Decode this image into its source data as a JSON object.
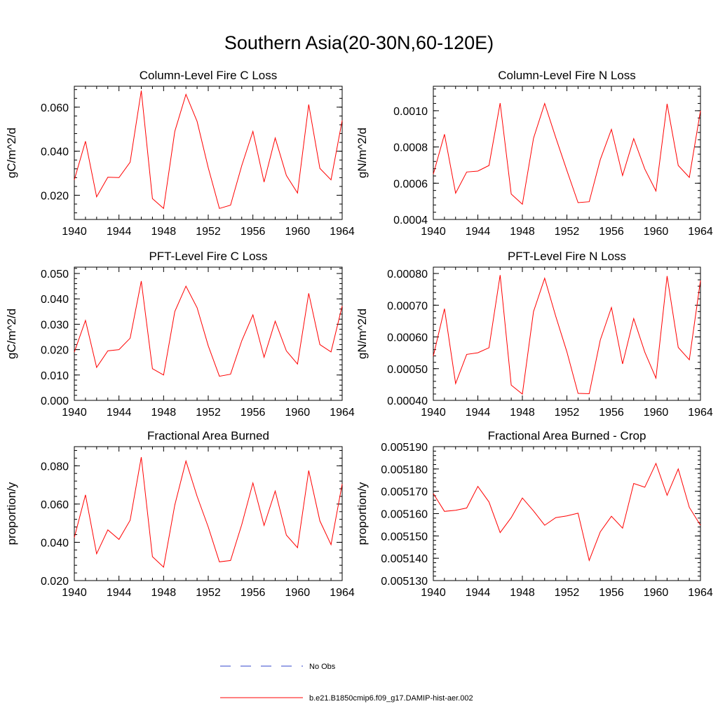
{
  "title": "Southern Asia(20-30N,60-120E)",
  "legend": [
    {
      "label": "No Obs",
      "color": "#3344cc",
      "dash": "dashed"
    },
    {
      "label": "b.e21.B1850cmip6.f09_g17.DAMIP-hist-aer.002",
      "color": "#ff0000",
      "dash": "solid"
    }
  ],
  "chart_data": [
    {
      "type": "line",
      "title": "Column-Level Fire C Loss",
      "xlabel": "",
      "ylabel": "gC/m^2/d",
      "xlim": [
        1940,
        1964
      ],
      "ylim": [
        0.009,
        0.0695
      ],
      "xticks": [
        1940,
        1944,
        1948,
        1952,
        1956,
        1960,
        1964
      ],
      "yticks": [
        0.02,
        0.04,
        0.06
      ],
      "ytick_labels": [
        "0.020",
        "0.040",
        "0.060"
      ],
      "x": [
        1940,
        1941,
        1942,
        1943,
        1944,
        1945,
        1946,
        1947,
        1948,
        1949,
        1950,
        1951,
        1952,
        1953,
        1954,
        1955,
        1956,
        1957,
        1958,
        1959,
        1960,
        1961,
        1962,
        1963,
        1964
      ],
      "series": [
        {
          "values": [
            0.027,
            0.0445,
            0.0193,
            0.0282,
            0.028,
            0.035,
            0.0675,
            0.0185,
            0.014,
            0.049,
            0.0658,
            0.0535,
            0.0325,
            0.014,
            0.0155,
            0.0335,
            0.049,
            0.026,
            0.046,
            0.029,
            0.021,
            0.0612,
            0.0322,
            0.027,
            0.054
          ],
          "color": "#ff0000"
        }
      ]
    },
    {
      "type": "line",
      "title": "Column-Level Fire N Loss",
      "xlabel": "",
      "ylabel": "gN/m^2/d",
      "xlim": [
        1940,
        1964
      ],
      "ylim": [
        0.0004,
        0.001135
      ],
      "xticks": [
        1940,
        1944,
        1948,
        1952,
        1956,
        1960,
        1964
      ],
      "yticks": [
        0.0004,
        0.0006,
        0.0008,
        0.001
      ],
      "ytick_labels": [
        "0.0004",
        "0.0006",
        "0.0008",
        "0.0010"
      ],
      "x": [
        1940,
        1941,
        1942,
        1943,
        1944,
        1945,
        1946,
        1947,
        1948,
        1949,
        1950,
        1951,
        1952,
        1953,
        1954,
        1955,
        1956,
        1957,
        1958,
        1959,
        1960,
        1961,
        1962,
        1963,
        1964
      ],
      "series": [
        {
          "values": [
            0.00065,
            0.00087,
            0.000545,
            0.000662,
            0.000667,
            0.000698,
            0.001042,
            0.00054,
            0.000484,
            0.000848,
            0.00104,
            0.000852,
            0.00067,
            0.000493,
            0.000498,
            0.00073,
            0.000897,
            0.000642,
            0.000846,
            0.000678,
            0.000557,
            0.001038,
            0.000698,
            0.000632,
            0.001
          ]
        }
      ]
    },
    {
      "type": "line",
      "title": "PFT-Level Fire C Loss",
      "xlabel": "",
      "ylabel": "gC/m^2/d",
      "xlim": [
        1940,
        1964
      ],
      "ylim": [
        0.0,
        0.0525
      ],
      "xticks": [
        1940,
        1944,
        1948,
        1952,
        1956,
        1960,
        1964
      ],
      "yticks": [
        0.0,
        0.01,
        0.02,
        0.03,
        0.04,
        0.05
      ],
      "ytick_labels": [
        "0.000",
        "0.010",
        "0.020",
        "0.030",
        "0.040",
        "0.050"
      ],
      "x": [
        1940,
        1941,
        1942,
        1943,
        1944,
        1945,
        1946,
        1947,
        1948,
        1949,
        1950,
        1951,
        1952,
        1953,
        1954,
        1955,
        1956,
        1957,
        1958,
        1959,
        1960,
        1961,
        1962,
        1963,
        1964
      ],
      "series": [
        {
          "values": [
            0.019,
            0.0315,
            0.013,
            0.0195,
            0.02,
            0.0245,
            0.047,
            0.0125,
            0.01,
            0.035,
            0.045,
            0.0365,
            0.0215,
            0.0095,
            0.0103,
            0.0235,
            0.0337,
            0.017,
            0.0312,
            0.0195,
            0.0143,
            0.0422,
            0.022,
            0.0191,
            0.0372
          ]
        }
      ]
    },
    {
      "type": "line",
      "title": "PFT-Level Fire N Loss",
      "xlabel": "",
      "ylabel": "gN/m^2/d",
      "xlim": [
        1940,
        1964
      ],
      "ylim": [
        0.0004,
        0.00082
      ],
      "xticks": [
        1940,
        1944,
        1948,
        1952,
        1956,
        1960,
        1964
      ],
      "yticks": [
        0.0004,
        0.0005,
        0.0006,
        0.0007,
        0.0008
      ],
      "ytick_labels": [
        "0.00040",
        "0.00050",
        "0.00060",
        "0.00070",
        "0.00080"
      ],
      "x": [
        1940,
        1941,
        1942,
        1943,
        1944,
        1945,
        1946,
        1947,
        1948,
        1949,
        1950,
        1951,
        1952,
        1953,
        1954,
        1955,
        1956,
        1957,
        1958,
        1959,
        1960,
        1961,
        1962,
        1963,
        1964
      ],
      "series": [
        {
          "values": [
            0.00054,
            0.000689,
            0.000453,
            0.000545,
            0.00055,
            0.000566,
            0.000795,
            0.000448,
            0.00042,
            0.00068,
            0.000785,
            0.000665,
            0.000553,
            0.000422,
            0.000421,
            0.00059,
            0.000693,
            0.000515,
            0.000658,
            0.000552,
            0.00047,
            0.000792,
            0.000567,
            0.000528,
            0.000778
          ]
        }
      ]
    },
    {
      "type": "line",
      "title": "Fractional Area Burned",
      "xlabel": "",
      "ylabel": "proportion/y",
      "xlim": [
        1940,
        1964
      ],
      "ylim": [
        0.02,
        0.09
      ],
      "xticks": [
        1940,
        1944,
        1948,
        1952,
        1956,
        1960,
        1964
      ],
      "yticks": [
        0.02,
        0.04,
        0.06,
        0.08
      ],
      "ytick_labels": [
        "0.020",
        "0.040",
        "0.060",
        "0.080"
      ],
      "x": [
        1940,
        1941,
        1942,
        1943,
        1944,
        1945,
        1946,
        1947,
        1948,
        1949,
        1950,
        1951,
        1952,
        1953,
        1954,
        1955,
        1956,
        1957,
        1958,
        1959,
        1960,
        1961,
        1962,
        1963,
        1964
      ],
      "series": [
        {
          "values": [
            0.0425,
            0.0648,
            0.034,
            0.0465,
            0.0415,
            0.0515,
            0.0845,
            0.0325,
            0.027,
            0.0595,
            0.0825,
            0.064,
            0.048,
            0.0298,
            0.0305,
            0.0493,
            0.071,
            0.0488,
            0.0668,
            0.0438,
            0.0372,
            0.0775,
            0.0512,
            0.0388,
            0.0705
          ]
        }
      ]
    },
    {
      "type": "line",
      "title": "Fractional Area Burned - Crop",
      "xlabel": "",
      "ylabel": "proportion/y",
      "xlim": [
        1940,
        1964
      ],
      "ylim": [
        0.00513,
        0.00519
      ],
      "xticks": [
        1940,
        1944,
        1948,
        1952,
        1956,
        1960,
        1964
      ],
      "yticks": [
        0.00513,
        0.00514,
        0.00515,
        0.00516,
        0.00517,
        0.00518,
        0.00519
      ],
      "ytick_labels": [
        "0.005130",
        "0.005140",
        "0.005150",
        "0.005160",
        "0.005170",
        "0.005180",
        "0.005190"
      ],
      "x": [
        1940,
        1941,
        1942,
        1943,
        1944,
        1945,
        1946,
        1947,
        1948,
        1949,
        1950,
        1951,
        1952,
        1953,
        1954,
        1955,
        1956,
        1957,
        1958,
        1959,
        1960,
        1961,
        1962,
        1963,
        1964
      ],
      "series": [
        {
          "values": [
            0.005169,
            0.005161,
            0.0051615,
            0.0051625,
            0.0051722,
            0.0051652,
            0.0051515,
            0.0051582,
            0.005167,
            0.0051612,
            0.0051548,
            0.0051582,
            0.005159,
            0.0051602,
            0.005139,
            0.0051518,
            0.0051588,
            0.0051535,
            0.0051735,
            0.0051718,
            0.0051825,
            0.0051682,
            0.00518,
            0.0051628,
            0.0051548
          ]
        }
      ]
    }
  ]
}
